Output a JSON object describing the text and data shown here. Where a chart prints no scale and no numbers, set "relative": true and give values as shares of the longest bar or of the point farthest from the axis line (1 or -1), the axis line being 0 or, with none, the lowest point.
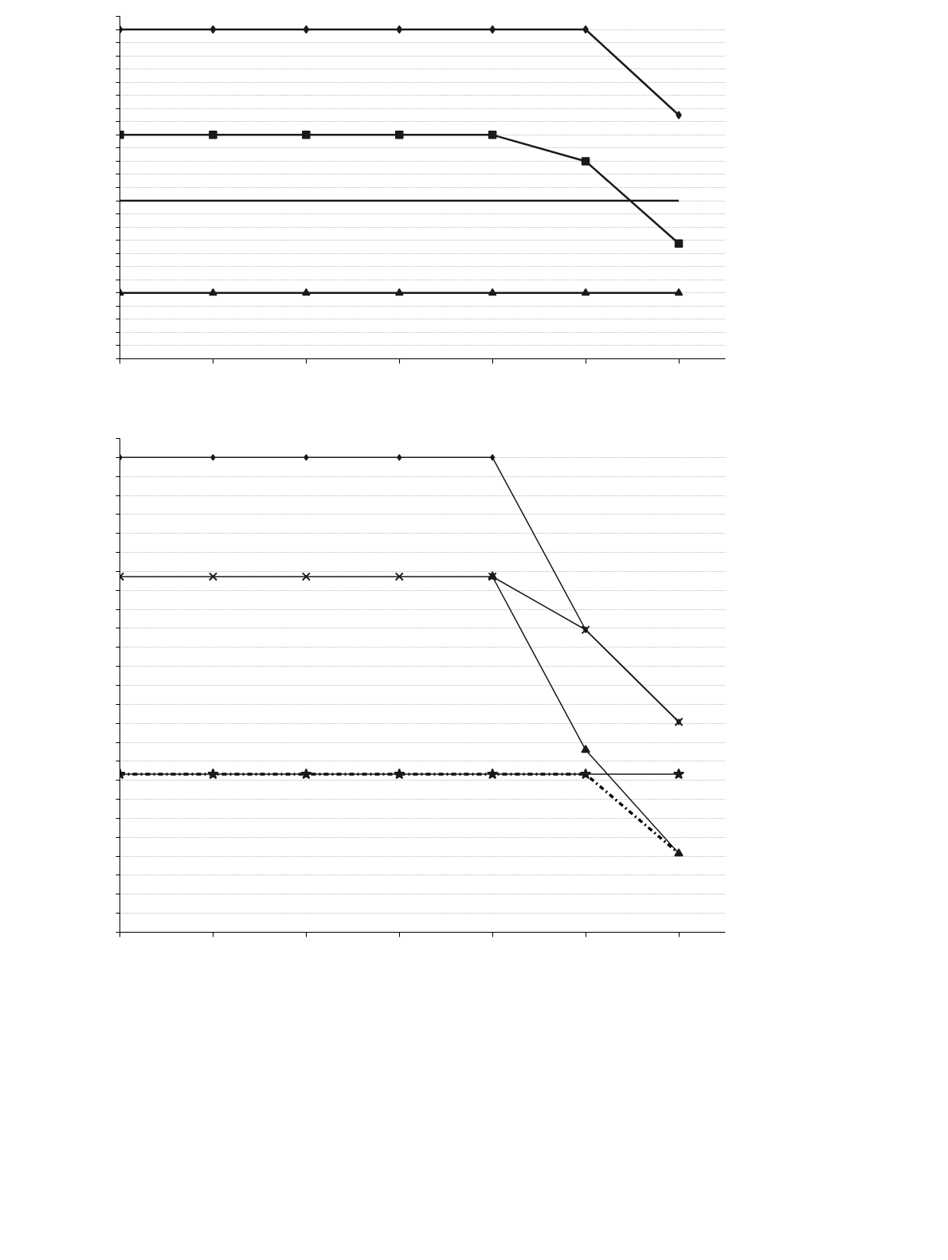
{
  "chart_data": [
    {
      "type": "line",
      "relative": true,
      "categories": [
        null,
        null,
        null,
        null,
        null,
        null,
        null
      ],
      "grid": "y",
      "series": [
        {
          "color": "#1a1a1a",
          "marker": "diamond",
          "values": [
            1,
            1,
            1,
            1,
            1,
            1,
            0.74
          ]
        },
        {
          "color": "#1a1a1a",
          "marker": "square",
          "values": [
            0.68,
            0.68,
            0.68,
            0.68,
            0.68,
            0.6,
            0.35
          ]
        },
        {
          "color": "#1a1a1a",
          "marker": "none",
          "values": [
            0.48,
            0.48,
            0.48,
            0.48,
            0.48,
            0.48,
            0.48
          ]
        },
        {
          "color": "#1a1a1a",
          "marker": "triangle",
          "values": [
            0.2,
            0.2,
            0.2,
            0.2,
            0.2,
            0.2,
            0.2
          ]
        }
      ]
    },
    {
      "type": "line",
      "relative": true,
      "categories": [
        null,
        null,
        null,
        null,
        null,
        null,
        null
      ],
      "grid": "y",
      "series": [
        {
          "color": "#1a1a1a",
          "marker": "diamond",
          "values": [
            1,
            1,
            1,
            1,
            1,
            0.637,
            0.443
          ]
        },
        {
          "color": "#1a1a1a",
          "marker": "triangle",
          "values": [
            null,
            null,
            null,
            null,
            0.749,
            0.384,
            0.166
          ]
        },
        {
          "color": "#1a1a1a",
          "marker": "cross",
          "values": [
            0.749,
            0.749,
            0.749,
            0.749,
            0.749,
            0.637,
            0.443
          ]
        },
        {
          "color": "#000000",
          "marker": "none",
          "line_style": "dashdot",
          "values": [
            0.333,
            0.333,
            0.333,
            0.333,
            0.333,
            0.333,
            0.166
          ]
        },
        {
          "color": "#1a1a1a",
          "marker": "star",
          "values": [
            0.333,
            0.333,
            0.333,
            0.333,
            0.333,
            0.333,
            0.333
          ]
        }
      ]
    }
  ]
}
